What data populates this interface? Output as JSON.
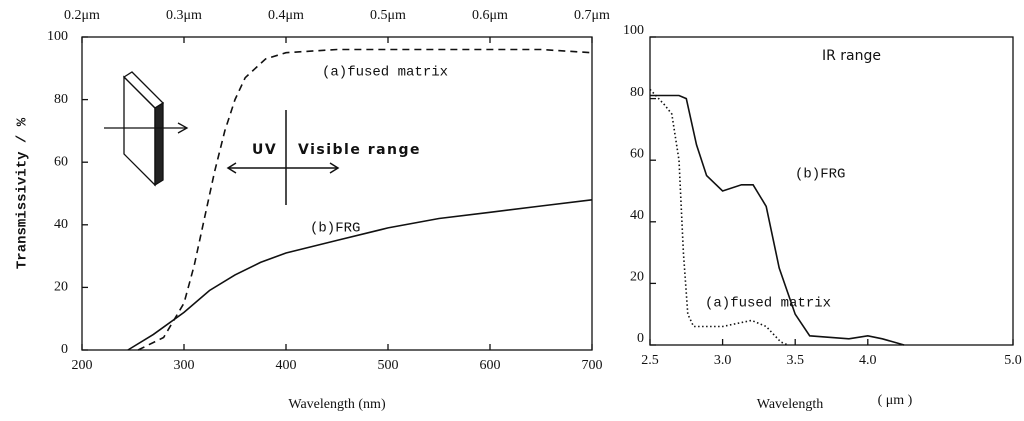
{
  "chart_data": [
    {
      "type": "line",
      "y_label": "Transmissivity / %",
      "x_label": "Wavelength (nm)",
      "xlim": [
        200,
        700
      ],
      "xticks": [
        200,
        300,
        400,
        500,
        600,
        700
      ],
      "x2ticks": [
        {
          "value": 200,
          "label": "0.2μm"
        },
        {
          "value": 300,
          "label": "0.3μm"
        },
        {
          "value": 400,
          "label": "0.4μm"
        },
        {
          "value": 500,
          "label": "0.5μm"
        },
        {
          "value": 600,
          "label": "0.6μm"
        },
        {
          "value": 700,
          "label": "0.7μm"
        }
      ],
      "ylim": [
        0,
        100
      ],
      "yticks": [
        0,
        20,
        40,
        60,
        80,
        100
      ],
      "annotations": [
        "UV",
        "Visible range"
      ],
      "series": [
        {
          "name": "(a)fused matrix",
          "color": "#111111",
          "style": "dashed",
          "x": [
            255,
            280,
            300,
            310,
            320,
            330,
            340,
            350,
            360,
            380,
            400,
            450,
            500,
            600,
            650,
            700
          ],
          "values": [
            0,
            4,
            15,
            27,
            42,
            57,
            70,
            80,
            87,
            93,
            95,
            96,
            96,
            96,
            96,
            95
          ]
        },
        {
          "name": "(b)FRG",
          "color": "#111111",
          "style": "solid",
          "x": [
            245,
            270,
            300,
            325,
            350,
            375,
            400,
            450,
            500,
            550,
            600,
            650,
            700
          ],
          "values": [
            0,
            5,
            12,
            19,
            24,
            28,
            31,
            35,
            39,
            42,
            44,
            46,
            48
          ]
        }
      ]
    },
    {
      "type": "line",
      "title": "IR range",
      "x_label": "Wavelength",
      "x_unit": "( μm )",
      "xlim": [
        2.5,
        5.0
      ],
      "xticks": [
        2.5,
        {
          "value": 3,
          "label": "3.0"
        },
        3.5,
        {
          "value": 4,
          "label": "4.0"
        },
        {
          "value": 5,
          "label": "5.0"
        }
      ],
      "ylim": [
        0,
        100
      ],
      "yticks": [
        0,
        20,
        40,
        60,
        80,
        100
      ],
      "series": [
        {
          "name": "(b)FRG",
          "color": "#111111",
          "style": "solid",
          "x": [
            2.5,
            2.6,
            2.7,
            2.75,
            2.82,
            2.89,
            3.0,
            3.13,
            3.21,
            3.3,
            3.39,
            3.5,
            3.6,
            3.87,
            4.0,
            4.1,
            4.25
          ],
          "values": [
            81,
            81,
            81,
            80,
            65,
            55,
            50,
            52,
            52,
            45,
            25,
            10,
            3,
            2,
            3,
            2,
            0
          ]
        },
        {
          "name": "(a)fused matrix",
          "color": "#111111",
          "style": "dotted",
          "x": [
            2.5,
            2.6,
            2.65,
            2.7,
            2.73,
            2.76,
            2.8,
            3.0,
            3.2,
            3.3,
            3.4,
            3.45
          ],
          "values": [
            83,
            78,
            75,
            60,
            30,
            10,
            6,
            6,
            8,
            6,
            1,
            0
          ]
        }
      ]
    }
  ]
}
